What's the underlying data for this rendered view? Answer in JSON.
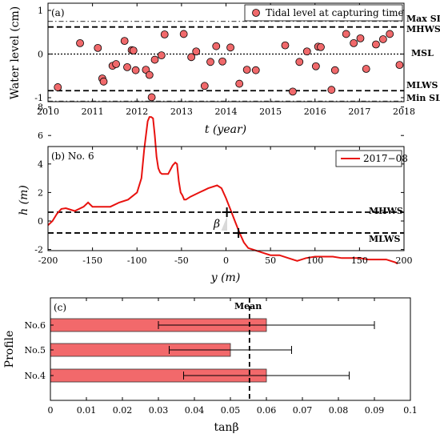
{
  "chart_data": [
    {
      "type": "scatter",
      "panel_label": "(a)",
      "xlabel": "t (year)",
      "ylabel": "Water level (cm)",
      "xlim": [
        2010,
        2018
      ],
      "ylim": [
        -1.15,
        1.2
      ],
      "xticks": [
        "2010",
        "2011",
        "2012",
        "2013",
        "2014",
        "2015",
        "2016",
        "2017",
        "2018"
      ],
      "yticks": [
        "-1",
        "0",
        "1"
      ],
      "legend": "Tidal level at capturing time",
      "legend_position": "top-right",
      "grid": false,
      "marker_color": "#f0696b",
      "reference_lines": [
        {
          "name": "Max SL",
          "y": 0.75,
          "style": "dash-dot",
          "color": "#555555"
        },
        {
          "name": "MHWS",
          "y": 0.62,
          "style": "dashed",
          "color": "#000000"
        },
        {
          "name": "MSL",
          "y": 0.0,
          "style": "dotted",
          "color": "#000000"
        },
        {
          "name": "MLWS",
          "y": -0.84,
          "style": "dashed",
          "color": "#000000"
        },
        {
          "name": "Min SL",
          "y": -1.08,
          "style": "dash-dot",
          "color": "#555555"
        }
      ],
      "points": [
        [
          2010.22,
          -0.76
        ],
        [
          2010.72,
          0.25
        ],
        [
          2011.12,
          0.14
        ],
        [
          2011.22,
          -0.56
        ],
        [
          2011.25,
          -0.63
        ],
        [
          2011.45,
          -0.27
        ],
        [
          2011.53,
          -0.23
        ],
        [
          2011.72,
          0.3
        ],
        [
          2011.78,
          -0.3
        ],
        [
          2011.88,
          0.09
        ],
        [
          2011.92,
          0.08
        ],
        [
          2011.97,
          -0.37
        ],
        [
          2012.2,
          -0.36
        ],
        [
          2012.28,
          -0.48
        ],
        [
          2012.33,
          -0.99
        ],
        [
          2012.4,
          -0.13
        ],
        [
          2012.55,
          -0.03
        ],
        [
          2012.62,
          0.45
        ],
        [
          2013.05,
          0.46
        ],
        [
          2013.22,
          -0.07
        ],
        [
          2013.33,
          0.06
        ],
        [
          2013.52,
          -0.73
        ],
        [
          2013.65,
          -0.18
        ],
        [
          2013.78,
          0.18
        ],
        [
          2013.92,
          -0.17
        ],
        [
          2014.1,
          0.15
        ],
        [
          2014.3,
          -0.68
        ],
        [
          2014.47,
          -0.36
        ],
        [
          2014.67,
          -0.37
        ],
        [
          2015.33,
          0.2
        ],
        [
          2015.5,
          -0.86
        ],
        [
          2015.65,
          -0.18
        ],
        [
          2015.82,
          0.06
        ],
        [
          2016.02,
          -0.28
        ],
        [
          2016.07,
          0.17
        ],
        [
          2016.13,
          0.16
        ],
        [
          2016.37,
          -0.82
        ],
        [
          2016.45,
          -0.37
        ],
        [
          2016.7,
          0.46
        ],
        [
          2016.87,
          0.25
        ],
        [
          2017.02,
          0.36
        ],
        [
          2017.15,
          -0.34
        ],
        [
          2017.37,
          0.22
        ],
        [
          2017.53,
          0.34
        ],
        [
          2017.68,
          0.46
        ],
        [
          2017.9,
          -0.25
        ]
      ]
    },
    {
      "type": "line",
      "panel_label": "(b) No. 6",
      "xlabel": "y (m)",
      "ylabel": "h (m)",
      "xlim": [
        -200,
        200
      ],
      "ylim": [
        -3,
        8
      ],
      "xticks": [
        "-200",
        "-150",
        "-100",
        "-50",
        "0",
        "50",
        "100",
        "150",
        "200"
      ],
      "yticks": [
        "-2",
        "0",
        "2",
        "4",
        "6",
        "8"
      ],
      "legend_position": "top-right",
      "grid": false,
      "series": [
        {
          "name": "2017−08",
          "color": "#e8120f",
          "x": [
            -200,
            -195,
            -190,
            -185,
            -180,
            -170,
            -160,
            -155,
            -150,
            -145,
            -130,
            -120,
            -110,
            -100,
            -95,
            -92,
            -90,
            -88,
            -86,
            -84,
            -82,
            -80,
            -78,
            -76,
            -74,
            -72,
            -70,
            -65,
            -60,
            -57,
            -55,
            -53,
            -51,
            -49,
            -47,
            -45,
            -40,
            -30,
            -20,
            -10,
            -5,
            0,
            5,
            10,
            15,
            20,
            25,
            30,
            40,
            50,
            60,
            70,
            80,
            90,
            100,
            110,
            120,
            130,
            140,
            150,
            160,
            170,
            180,
            185,
            190,
            193
          ],
          "y": [
            -0.3,
            0.0,
            0.5,
            0.85,
            0.9,
            0.7,
            1.0,
            1.3,
            1.0,
            1.0,
            1.0,
            1.3,
            1.5,
            2.0,
            3.0,
            5.0,
            6.0,
            7.0,
            7.3,
            7.3,
            7.2,
            6.0,
            4.5,
            3.7,
            3.4,
            3.3,
            3.3,
            3.3,
            3.9,
            4.1,
            4.0,
            2.8,
            2.0,
            1.8,
            1.5,
            1.5,
            1.7,
            2.0,
            2.3,
            2.5,
            2.3,
            1.6,
            0.8,
            0.0,
            -0.8,
            -1.5,
            -1.9,
            -2.0,
            -2.2,
            -2.4,
            -2.4,
            -2.6,
            -2.8,
            -2.6,
            -2.5,
            -2.5,
            -2.5,
            -2.6,
            -2.6,
            -2.6,
            -2.7,
            -2.7,
            -2.7,
            -2.8,
            -2.9,
            -3.0
          ]
        }
      ],
      "reference_lines": [
        {
          "name": "MHWS",
          "y": 0.62,
          "style": "dashed"
        },
        {
          "name": "MLWS",
          "y": -0.84,
          "style": "dashed"
        }
      ],
      "annotations": {
        "angle_symbol": "β",
        "markers": [
          [
            1,
            0.62
          ],
          [
            14,
            -0.84
          ]
        ]
      }
    },
    {
      "type": "bar",
      "orientation": "horizontal",
      "panel_label": "(c)",
      "xlabel": "tanβ",
      "ylabel": "Profile",
      "xlim": [
        0,
        0.1
      ],
      "xticks": [
        "0",
        "0.01",
        "0.02",
        "0.03",
        "0.04",
        "0.05",
        "0.06",
        "0.07",
        "0.08",
        "0.09",
        "0.1"
      ],
      "categories": [
        "No.6",
        "No.5",
        "No.4"
      ],
      "values": [
        0.06,
        0.05,
        0.06
      ],
      "error_low": [
        0.03,
        0.033,
        0.037
      ],
      "error_high": [
        0.09,
        0.067,
        0.083
      ],
      "bar_color": "#f2696b",
      "mean_line": {
        "label": "Mean",
        "x": 0.0553
      }
    }
  ]
}
